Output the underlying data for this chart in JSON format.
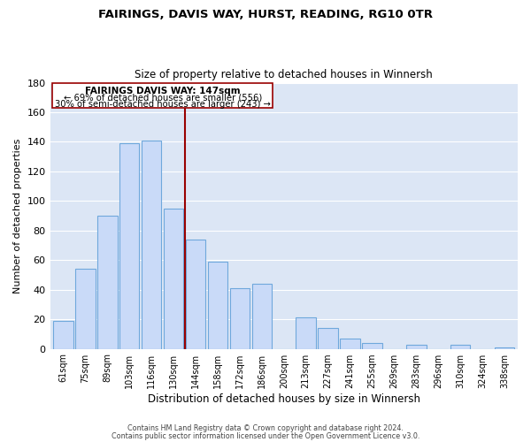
{
  "title": "FAIRINGS, DAVIS WAY, HURST, READING, RG10 0TR",
  "subtitle": "Size of property relative to detached houses in Winnersh",
  "xlabel": "Distribution of detached houses by size in Winnersh",
  "ylabel": "Number of detached properties",
  "bar_labels": [
    "61sqm",
    "75sqm",
    "89sqm",
    "103sqm",
    "116sqm",
    "130sqm",
    "144sqm",
    "158sqm",
    "172sqm",
    "186sqm",
    "200sqm",
    "213sqm",
    "227sqm",
    "241sqm",
    "255sqm",
    "269sqm",
    "283sqm",
    "296sqm",
    "310sqm",
    "324sqm",
    "338sqm"
  ],
  "bar_values": [
    19,
    54,
    90,
    139,
    141,
    95,
    74,
    59,
    41,
    44,
    0,
    21,
    14,
    7,
    4,
    0,
    3,
    0,
    3,
    0,
    1
  ],
  "bar_color": "#c9daf8",
  "bar_edgecolor": "#6fa8dc",
  "ylim": [
    0,
    180
  ],
  "yticks": [
    0,
    20,
    40,
    60,
    80,
    100,
    120,
    140,
    160,
    180
  ],
  "marker_label": "FAIRINGS DAVIS WAY: 147sqm",
  "annotation_line1": "← 69% of detached houses are smaller (556)",
  "annotation_line2": "30% of semi-detached houses are larger (243) →",
  "vline_color": "#990000",
  "box_edgecolor": "#990000",
  "footer1": "Contains HM Land Registry data © Crown copyright and database right 2024.",
  "footer2": "Contains public sector information licensed under the Open Government Licence v3.0.",
  "background_color": "#ffffff",
  "plot_bg_color": "#dce6f5",
  "grid_color": "#ffffff"
}
